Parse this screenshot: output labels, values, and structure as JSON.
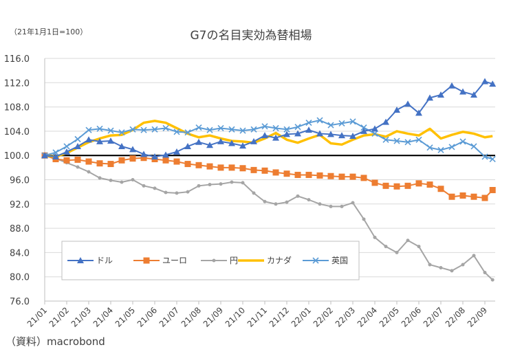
{
  "chart_data": {
    "type": "line",
    "title": "G7の名目実効為替相場",
    "subtitle": "（21年1月1日=100）",
    "source": "（資料）macrobond",
    "ylim": [
      76.0,
      116.0
    ],
    "yticks": [
      "76.0",
      "80.0",
      "84.0",
      "88.0",
      "92.0",
      "96.0",
      "100.0",
      "104.0",
      "108.0",
      "112.0",
      "116.0"
    ],
    "ytick_values": [
      76,
      80,
      84,
      88,
      92,
      96,
      100,
      104,
      108,
      112,
      116
    ],
    "categories": [
      "21/01",
      "21/02",
      "21/03",
      "21/04",
      "21/05",
      "21/06",
      "21/07",
      "21/08",
      "21/09",
      "21/10",
      "21/11",
      "21/12",
      "22/01",
      "22/02",
      "22/03",
      "22/04",
      "22/05",
      "22/06",
      "22/07",
      "22/08",
      "22/09"
    ],
    "x_end": 20.35,
    "reference_line": 100,
    "grid": true,
    "legend_position": "bottom-left inside",
    "series": [
      {
        "name": "ドル",
        "color": "#4472C4",
        "marker": "triangle",
        "values": [
          [
            0,
            100
          ],
          [
            0.5,
            99.8
          ],
          [
            1,
            100.6
          ],
          [
            1.5,
            101.5
          ],
          [
            2,
            102.6
          ],
          [
            2.5,
            102.3
          ],
          [
            3,
            102.4
          ],
          [
            3.5,
            101.5
          ],
          [
            4,
            101
          ],
          [
            4.5,
            100.2
          ],
          [
            5,
            99.8
          ],
          [
            5.5,
            100.1
          ],
          [
            6,
            100.6
          ],
          [
            6.5,
            101.5
          ],
          [
            7,
            102.2
          ],
          [
            7.5,
            101.7
          ],
          [
            8,
            102.3
          ],
          [
            8.5,
            102
          ],
          [
            9,
            101.6
          ],
          [
            9.5,
            102.3
          ],
          [
            10,
            103.3
          ],
          [
            10.5,
            102.9
          ],
          [
            11,
            103.5
          ],
          [
            11.5,
            103.6
          ],
          [
            12,
            104.2
          ],
          [
            12.5,
            103.6
          ],
          [
            13,
            103.5
          ],
          [
            13.5,
            103.3
          ],
          [
            14,
            103.2
          ],
          [
            14.5,
            104
          ],
          [
            15,
            104.4
          ],
          [
            15.5,
            105.5
          ],
          [
            16,
            107.5
          ],
          [
            16.5,
            108.5
          ],
          [
            17,
            107
          ],
          [
            17.5,
            109.5
          ],
          [
            18,
            110
          ],
          [
            18.5,
            111.5
          ],
          [
            19,
            110.5
          ],
          [
            19.5,
            110
          ],
          [
            20,
            112.2
          ],
          [
            20.35,
            111.8
          ]
        ]
      },
      {
        "name": "ユーロ",
        "color": "#ED7D31",
        "marker": "square",
        "values": [
          [
            0,
            100
          ],
          [
            0.5,
            99.4
          ],
          [
            1,
            99.2
          ],
          [
            1.5,
            99.3
          ],
          [
            2,
            99
          ],
          [
            2.5,
            98.7
          ],
          [
            3,
            98.6
          ],
          [
            3.5,
            99.2
          ],
          [
            4,
            99.5
          ],
          [
            4.5,
            99.6
          ],
          [
            5,
            99.4
          ],
          [
            5.5,
            99.2
          ],
          [
            6,
            99
          ],
          [
            6.5,
            98.6
          ],
          [
            7,
            98.4
          ],
          [
            7.5,
            98.2
          ],
          [
            8,
            98
          ],
          [
            8.5,
            98
          ],
          [
            9,
            97.9
          ],
          [
            9.5,
            97.6
          ],
          [
            10,
            97.5
          ],
          [
            10.5,
            97.2
          ],
          [
            11,
            97
          ],
          [
            11.5,
            96.8
          ],
          [
            12,
            96.8
          ],
          [
            12.5,
            96.7
          ],
          [
            13,
            96.6
          ],
          [
            13.5,
            96.5
          ],
          [
            14,
            96.5
          ],
          [
            14.5,
            96.3
          ],
          [
            15,
            95.5
          ],
          [
            15.5,
            95
          ],
          [
            16,
            94.9
          ],
          [
            16.5,
            95
          ],
          [
            17,
            95.4
          ],
          [
            17.5,
            95.2
          ],
          [
            18,
            94.5
          ],
          [
            18.5,
            93.2
          ],
          [
            19,
            93.4
          ],
          [
            19.5,
            93.2
          ],
          [
            20,
            93
          ],
          [
            20.35,
            94.3
          ]
        ]
      },
      {
        "name": "円",
        "color": "#A5A5A5",
        "marker": "circle",
        "values": [
          [
            0,
            100
          ],
          [
            0.5,
            99.5
          ],
          [
            1,
            98.8
          ],
          [
            1.5,
            98.1
          ],
          [
            2,
            97.3
          ],
          [
            2.5,
            96.3
          ],
          [
            3,
            95.9
          ],
          [
            3.5,
            95.6
          ],
          [
            4,
            96
          ],
          [
            4.5,
            95
          ],
          [
            5,
            94.6
          ],
          [
            5.5,
            93.9
          ],
          [
            6,
            93.8
          ],
          [
            6.5,
            94
          ],
          [
            7,
            95
          ],
          [
            7.5,
            95.2
          ],
          [
            8,
            95.3
          ],
          [
            8.5,
            95.6
          ],
          [
            9,
            95.5
          ],
          [
            9.5,
            93.8
          ],
          [
            10,
            92.4
          ],
          [
            10.5,
            92
          ],
          [
            11,
            92.3
          ],
          [
            11.5,
            93.3
          ],
          [
            12,
            92.7
          ],
          [
            12.5,
            92
          ],
          [
            13,
            91.6
          ],
          [
            13.5,
            91.6
          ],
          [
            14,
            92.2
          ],
          [
            14.5,
            89.5
          ],
          [
            15,
            86.5
          ],
          [
            15.5,
            85
          ],
          [
            16,
            84
          ],
          [
            16.5,
            86
          ],
          [
            17,
            85
          ],
          [
            17.5,
            82
          ],
          [
            18,
            81.5
          ],
          [
            18.5,
            81
          ],
          [
            19,
            82
          ],
          [
            19.5,
            83.5
          ],
          [
            20,
            80.7
          ],
          [
            20.35,
            79.5
          ]
        ]
      },
      {
        "name": "カナダ",
        "color": "#FFC000",
        "marker": "none",
        "values": [
          [
            0,
            100
          ],
          [
            0.5,
            99.8
          ],
          [
            1,
            100.4
          ],
          [
            1.5,
            101.3
          ],
          [
            2,
            102.2
          ],
          [
            2.5,
            102.8
          ],
          [
            3,
            103.3
          ],
          [
            3.5,
            103.4
          ],
          [
            4,
            104.2
          ],
          [
            4.5,
            105.4
          ],
          [
            5,
            105.7
          ],
          [
            5.5,
            105.4
          ],
          [
            6,
            104.5
          ],
          [
            6.5,
            103.6
          ],
          [
            7,
            103
          ],
          [
            7.5,
            103.3
          ],
          [
            8,
            102.8
          ],
          [
            8.5,
            102.4
          ],
          [
            9,
            102.3
          ],
          [
            9.5,
            102.1
          ],
          [
            10,
            102.8
          ],
          [
            10.5,
            103.7
          ],
          [
            11,
            102.6
          ],
          [
            11.5,
            102.1
          ],
          [
            12,
            102.8
          ],
          [
            12.5,
            103.4
          ],
          [
            13,
            102
          ],
          [
            13.5,
            101.8
          ],
          [
            14,
            102.6
          ],
          [
            14.5,
            103.3
          ],
          [
            15,
            103.5
          ],
          [
            15.5,
            103.1
          ],
          [
            16,
            104
          ],
          [
            16.5,
            103.6
          ],
          [
            17,
            103.3
          ],
          [
            17.5,
            104.4
          ],
          [
            18,
            102.8
          ],
          [
            18.5,
            103.4
          ],
          [
            19,
            103.9
          ],
          [
            19.5,
            103.6
          ],
          [
            20,
            103
          ],
          [
            20.35,
            103.2
          ]
        ]
      },
      {
        "name": "英国",
        "color": "#5B9BD5",
        "marker": "cross",
        "values": [
          [
            0,
            100
          ],
          [
            0.5,
            100.5
          ],
          [
            1,
            101.5
          ],
          [
            1.5,
            102.7
          ],
          [
            2,
            104.2
          ],
          [
            2.5,
            104.4
          ],
          [
            3,
            104.1
          ],
          [
            3.5,
            103.8
          ],
          [
            4,
            104.3
          ],
          [
            4.5,
            104.2
          ],
          [
            5,
            104.3
          ],
          [
            5.5,
            104.5
          ],
          [
            6,
            103.9
          ],
          [
            6.5,
            103.8
          ],
          [
            7,
            104.6
          ],
          [
            7.5,
            104.2
          ],
          [
            8,
            104.5
          ],
          [
            8.5,
            104.3
          ],
          [
            9,
            104.1
          ],
          [
            9.5,
            104.3
          ],
          [
            10,
            104.8
          ],
          [
            10.5,
            104.5
          ],
          [
            11,
            104.3
          ],
          [
            11.5,
            104.7
          ],
          [
            12,
            105.4
          ],
          [
            12.5,
            105.8
          ],
          [
            13,
            105
          ],
          [
            13.5,
            105.3
          ],
          [
            14,
            105.6
          ],
          [
            14.5,
            104.6
          ],
          [
            15,
            103.6
          ],
          [
            15.5,
            102.6
          ],
          [
            16,
            102.4
          ],
          [
            16.5,
            102.2
          ],
          [
            17,
            102.6
          ],
          [
            17.5,
            101.3
          ],
          [
            18,
            100.9
          ],
          [
            18.5,
            101.4
          ],
          [
            19,
            102.3
          ],
          [
            19.5,
            101.5
          ],
          [
            20,
            99.8
          ],
          [
            20.35,
            99.4
          ]
        ]
      }
    ]
  }
}
